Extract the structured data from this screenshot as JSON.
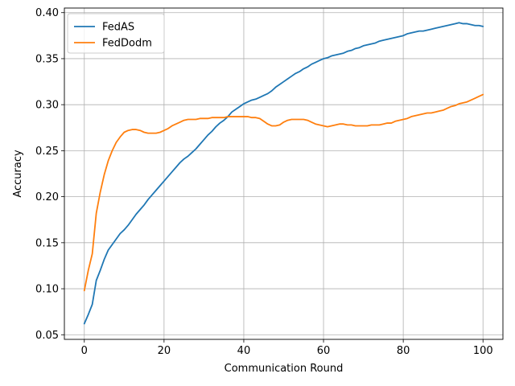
{
  "chart_data": {
    "type": "line",
    "title": "",
    "xlabel": "Communication Round",
    "ylabel": "Accuracy",
    "xlim": [
      -5,
      105
    ],
    "ylim": [
      0.045,
      0.405
    ],
    "xticks": [
      0,
      20,
      40,
      60,
      80,
      100
    ],
    "yticks": [
      0.05,
      0.1,
      0.15,
      0.2,
      0.25,
      0.3,
      0.35,
      0.4
    ],
    "ytick_labels": [
      "0.05",
      "0.10",
      "0.15",
      "0.20",
      "0.25",
      "0.30",
      "0.35",
      "0.40"
    ],
    "grid": true,
    "legend_position": "top-left",
    "x": [
      0,
      1,
      2,
      3,
      4,
      5,
      6,
      7,
      8,
      9,
      10,
      11,
      12,
      13,
      14,
      15,
      16,
      17,
      18,
      19,
      20,
      21,
      22,
      23,
      24,
      25,
      26,
      27,
      28,
      29,
      30,
      31,
      32,
      33,
      34,
      35,
      36,
      37,
      38,
      39,
      40,
      41,
      42,
      43,
      44,
      45,
      46,
      47,
      48,
      49,
      50,
      51,
      52,
      53,
      54,
      55,
      56,
      57,
      58,
      59,
      60,
      61,
      62,
      63,
      64,
      65,
      66,
      67,
      68,
      69,
      70,
      71,
      72,
      73,
      74,
      75,
      76,
      77,
      78,
      79,
      80,
      81,
      82,
      83,
      84,
      85,
      86,
      87,
      88,
      89,
      90,
      91,
      92,
      93,
      94,
      95,
      96,
      97,
      98,
      99,
      100
    ],
    "series": [
      {
        "name": "FedAS",
        "color": "#1f77b4",
        "values": [
          0.062,
          0.072,
          0.083,
          0.109,
          0.12,
          0.132,
          0.142,
          0.148,
          0.154,
          0.16,
          0.164,
          0.169,
          0.175,
          0.181,
          0.186,
          0.191,
          0.197,
          0.202,
          0.207,
          0.212,
          0.217,
          0.222,
          0.227,
          0.232,
          0.237,
          0.241,
          0.244,
          0.248,
          0.252,
          0.257,
          0.262,
          0.267,
          0.271,
          0.276,
          0.28,
          0.283,
          0.287,
          0.292,
          0.295,
          0.298,
          0.301,
          0.303,
          0.305,
          0.306,
          0.308,
          0.31,
          0.312,
          0.315,
          0.319,
          0.322,
          0.325,
          0.328,
          0.331,
          0.334,
          0.336,
          0.339,
          0.341,
          0.344,
          0.346,
          0.348,
          0.35,
          0.351,
          0.353,
          0.354,
          0.355,
          0.356,
          0.358,
          0.359,
          0.361,
          0.362,
          0.364,
          0.365,
          0.366,
          0.367,
          0.369,
          0.37,
          0.371,
          0.372,
          0.373,
          0.374,
          0.375,
          0.377,
          0.378,
          0.379,
          0.38,
          0.38,
          0.381,
          0.382,
          0.383,
          0.384,
          0.385,
          0.386,
          0.387,
          0.388,
          0.389,
          0.388,
          0.388,
          0.387,
          0.386,
          0.386,
          0.385
        ]
      },
      {
        "name": "FedDodm",
        "color": "#ff7f0e",
        "values": [
          0.098,
          0.12,
          0.138,
          0.182,
          0.205,
          0.224,
          0.239,
          0.25,
          0.259,
          0.265,
          0.27,
          0.272,
          0.273,
          0.273,
          0.272,
          0.27,
          0.269,
          0.269,
          0.269,
          0.27,
          0.272,
          0.274,
          0.277,
          0.279,
          0.281,
          0.283,
          0.284,
          0.284,
          0.284,
          0.285,
          0.285,
          0.285,
          0.286,
          0.286,
          0.286,
          0.286,
          0.287,
          0.287,
          0.287,
          0.287,
          0.287,
          0.287,
          0.286,
          0.286,
          0.285,
          0.282,
          0.279,
          0.277,
          0.277,
          0.278,
          0.281,
          0.283,
          0.284,
          0.284,
          0.284,
          0.284,
          0.283,
          0.281,
          0.279,
          0.278,
          0.277,
          0.276,
          0.277,
          0.278,
          0.279,
          0.279,
          0.278,
          0.278,
          0.277,
          0.277,
          0.277,
          0.277,
          0.278,
          0.278,
          0.278,
          0.279,
          0.28,
          0.28,
          0.282,
          0.283,
          0.284,
          0.285,
          0.287,
          0.288,
          0.289,
          0.29,
          0.291,
          0.291,
          0.292,
          0.293,
          0.294,
          0.296,
          0.298,
          0.299,
          0.301,
          0.302,
          0.303,
          0.305,
          0.307,
          0.309,
          0.311
        ]
      }
    ]
  }
}
